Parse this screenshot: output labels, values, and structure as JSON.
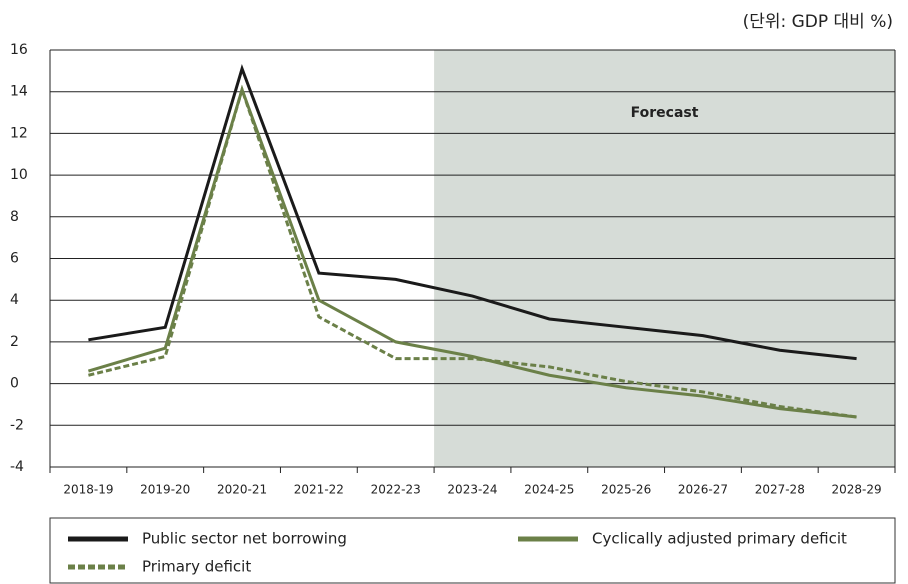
{
  "chart_data": {
    "type": "line",
    "unit_note": "(단위: GDP 대비 %)",
    "categories": [
      "2018-19",
      "2019-20",
      "2020-21",
      "2021-22",
      "2022-23",
      "2023-24",
      "2024-25",
      "2025-26",
      "2026-27",
      "2027-28",
      "2028-29"
    ],
    "series": [
      {
        "name": "Public sector net borrowing",
        "color": "#1a1a1a",
        "style": "solid",
        "values": [
          2.1,
          2.7,
          15.1,
          5.3,
          5.0,
          4.2,
          3.1,
          2.7,
          2.3,
          1.6,
          1.2
        ]
      },
      {
        "name": "Cyclically adjusted primary deficit",
        "color": "#6b8048",
        "style": "solid",
        "values": [
          0.6,
          1.7,
          14.1,
          4.0,
          2.0,
          1.3,
          0.4,
          -0.2,
          -0.6,
          -1.2,
          -1.6
        ]
      },
      {
        "name": "Primary deficit",
        "color": "#6b8048",
        "style": "dashed",
        "values": [
          0.4,
          1.3,
          14.1,
          3.2,
          1.2,
          1.2,
          0.8,
          0.1,
          -0.4,
          -1.1,
          -1.6
        ]
      }
    ],
    "shaded_region": {
      "label": "Forecast",
      "from": "2023-24",
      "color": "#d6dcd7"
    },
    "ylim": [
      -4,
      16
    ],
    "yticks": [
      -4,
      -2,
      0,
      2,
      4,
      6,
      8,
      10,
      12,
      14,
      16
    ],
    "grid": true
  }
}
